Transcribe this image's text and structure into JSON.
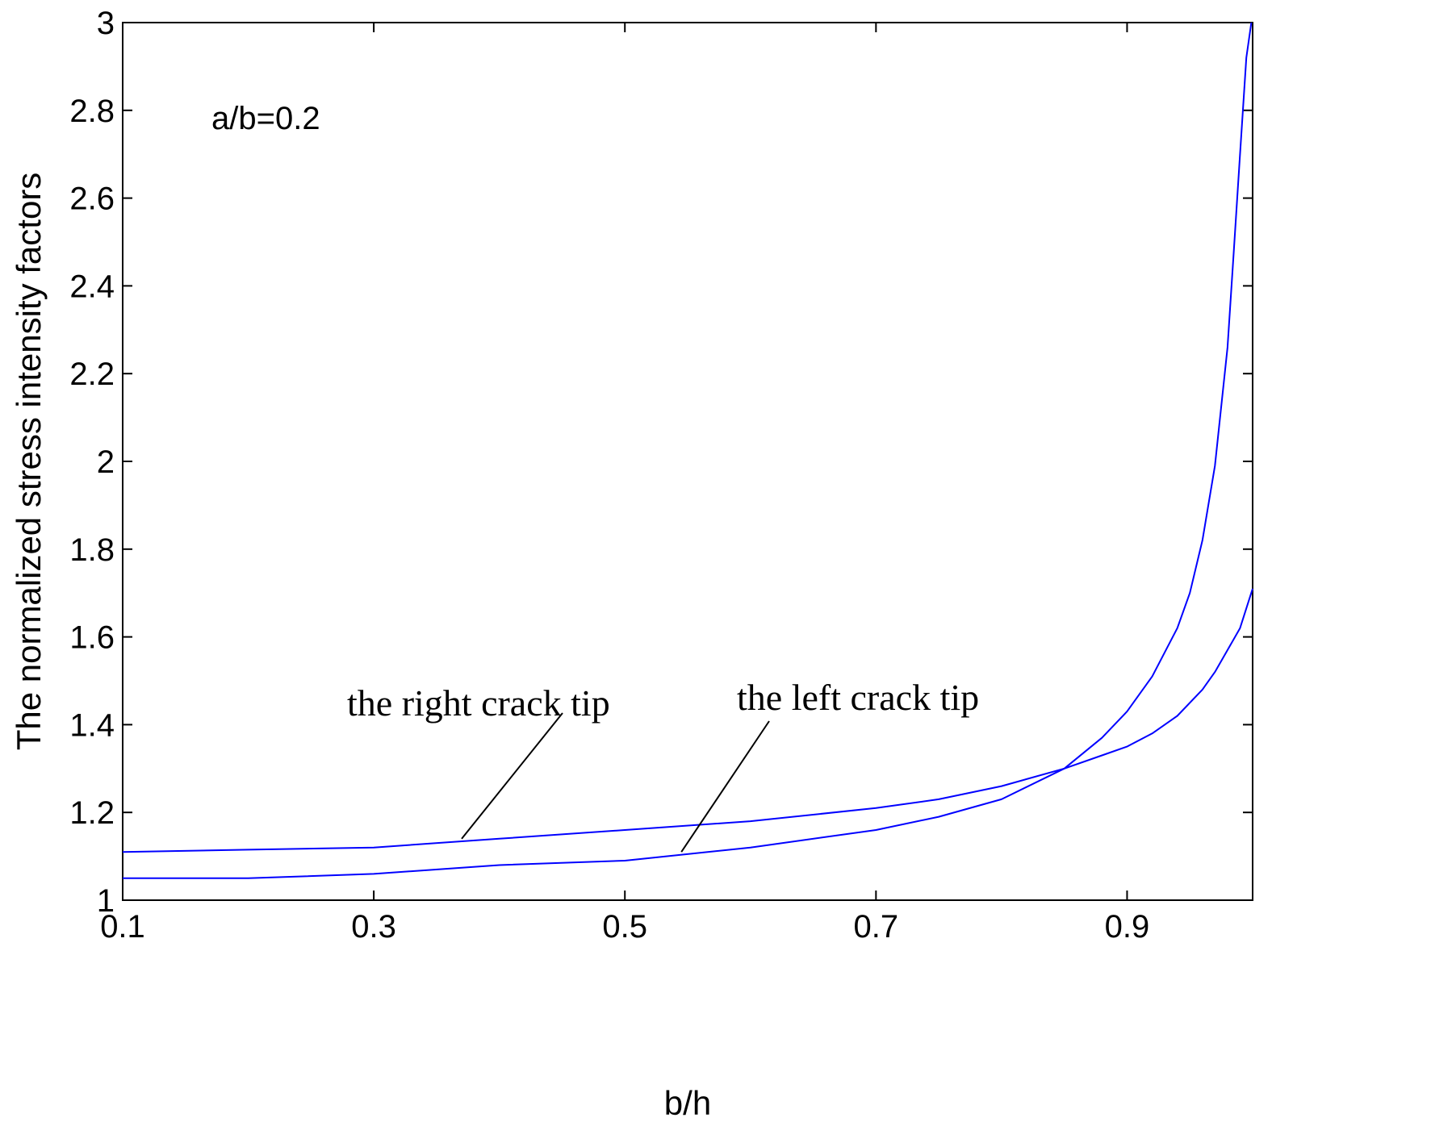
{
  "chart_data": {
    "type": "line",
    "xlabel": "b/h",
    "ylabel": "The normalized stress intensity factors",
    "xlim": [
      0.1,
      1.0
    ],
    "ylim": [
      1,
      3
    ],
    "xticks": [
      0.1,
      0.3,
      0.5,
      0.7,
      0.9
    ],
    "xtick_labels": [
      "0.1",
      "0.3",
      "0.5",
      "0.7",
      "0.9"
    ],
    "yticks": [
      1,
      1.2,
      1.4,
      1.6,
      1.8,
      2,
      2.2,
      2.4,
      2.6,
      2.8,
      3
    ],
    "ytick_labels": [
      "1",
      "1.2",
      "1.4",
      "1.6",
      "1.8",
      "2",
      "2.2",
      "2.4",
      "2.6",
      "2.8",
      "3"
    ],
    "grid": false,
    "line_color": "#0000ff",
    "annotation": "a/b=0.2",
    "series": [
      {
        "name": "the right crack tip",
        "x": [
          0.1,
          0.2,
          0.3,
          0.4,
          0.5,
          0.6,
          0.7,
          0.75,
          0.8,
          0.85,
          0.88,
          0.9,
          0.92,
          0.94,
          0.95,
          0.96,
          0.97,
          0.98,
          0.985,
          0.99,
          0.995,
          0.999
        ],
        "y": [
          1.05,
          1.05,
          1.06,
          1.08,
          1.09,
          1.12,
          1.16,
          1.19,
          1.23,
          1.3,
          1.37,
          1.43,
          1.51,
          1.62,
          1.7,
          1.82,
          1.99,
          2.26,
          2.48,
          2.7,
          2.92,
          3.0
        ]
      },
      {
        "name": "the left crack tip",
        "x": [
          0.1,
          0.2,
          0.3,
          0.4,
          0.5,
          0.6,
          0.7,
          0.75,
          0.8,
          0.85,
          0.88,
          0.9,
          0.92,
          0.94,
          0.96,
          0.97,
          0.98,
          0.99,
          1.0
        ],
        "y": [
          1.11,
          1.115,
          1.12,
          1.14,
          1.16,
          1.18,
          1.21,
          1.23,
          1.26,
          1.3,
          1.33,
          1.35,
          1.38,
          1.42,
          1.48,
          1.52,
          1.57,
          1.62,
          1.71
        ]
      }
    ],
    "labels": [
      {
        "text": "the right crack tip",
        "pointer_x": 0.37,
        "pointer_y": 1.14
      },
      {
        "text": "the left crack tip",
        "pointer_x": 0.545,
        "pointer_y": 1.11
      }
    ]
  }
}
